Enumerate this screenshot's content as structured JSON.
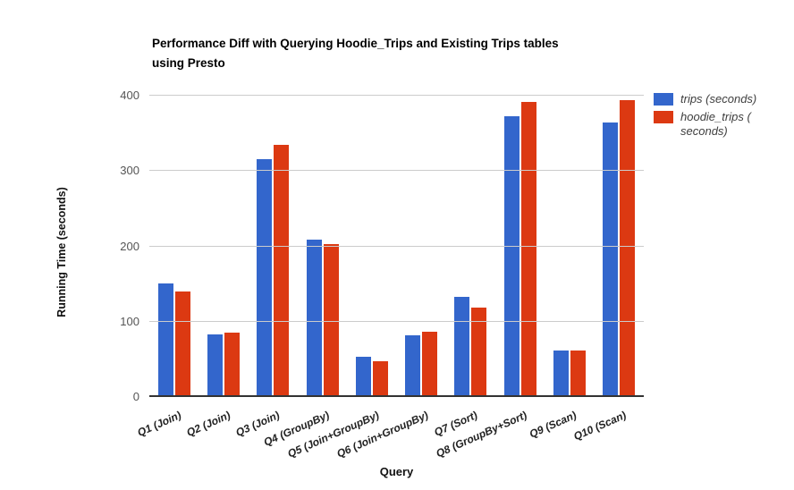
{
  "title": {
    "line1": "Performance Diff with Querying Hoodie_Trips and Existing Trips tables",
    "line2": "using Presto"
  },
  "chart_data": {
    "type": "bar",
    "title": "Performance Diff with Querying Hoodie_Trips and Existing Trips tables using Presto",
    "xlabel": "Query",
    "ylabel": "Running Time (seconds)",
    "ylim": [
      0,
      400
    ],
    "y_ticks": [
      0,
      100,
      200,
      300,
      400
    ],
    "grid": "horizontal-only",
    "legend_position": "right",
    "categories": [
      "Q1 (Join)",
      "Q2 (Join)",
      "Q3 (Join)",
      "Q4 (GroupBy)",
      "Q5 (Join+GroupBy)",
      "Q6 (Join+GroupBy)",
      "Q7 (Sort)",
      "Q8 (GroupBy+Sort)",
      "Q9 (Scan)",
      "Q10 (Scan)"
    ],
    "series": [
      {
        "name": "trips (seconds)",
        "color": "#3366cc",
        "values": [
          150,
          82,
          315,
          208,
          52,
          81,
          132,
          371,
          61,
          363
        ]
      },
      {
        "name": "hoodie_trips (seconds)",
        "color": "#dc3912",
        "values": [
          139,
          84,
          333,
          202,
          46,
          86,
          117,
          390,
          60,
          393
        ]
      }
    ]
  },
  "legend": {
    "items": [
      {
        "lines": [
          "trips (seconds)",
          ""
        ]
      },
      {
        "lines": [
          "hoodie_trips (",
          "seconds)"
        ]
      }
    ]
  },
  "colors": {
    "trips": "#3366cc",
    "hoodie_trips": "#dc3912",
    "gridline": "#cccccc",
    "axis_line": "#333333"
  }
}
